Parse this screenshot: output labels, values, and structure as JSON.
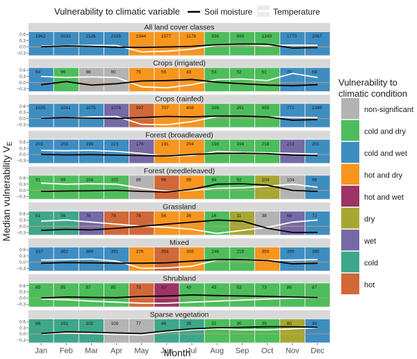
{
  "chart_data": {
    "type": "line",
    "title": "",
    "xlabel": "Month",
    "ylabel_main": "Median vulnerability V",
    "ylabel_sub": "E",
    "months": [
      "Jan",
      "Feb",
      "Mar",
      "Apr",
      "May",
      "Jun",
      "Jul",
      "Aug",
      "Sep",
      "Oct",
      "Nov",
      "Dec"
    ],
    "y_ticks": [
      "0.6",
      "0.3",
      "0.0",
      "−0.3"
    ],
    "ylim": [
      -0.45,
      0.75
    ],
    "top_legend": {
      "title": "Vulnerability to climatic variable",
      "items": [
        {
          "name": "Soil moisture",
          "color": "#000000"
        },
        {
          "name": "Temperature",
          "color": "#ffffff"
        }
      ]
    },
    "right_legend": {
      "title_line1": "Vulnerability to",
      "title_line2": "climatic condition",
      "items": [
        {
          "key": "ns",
          "label": "non-significant",
          "color": "#b3b3b3"
        },
        {
          "key": "cd",
          "label": "cold and dry",
          "color": "#4dbd5b"
        },
        {
          "key": "cw",
          "label": "cold and wet",
          "color": "#3e8dc1"
        },
        {
          "key": "hd",
          "label": "hot and dry",
          "color": "#f7951e"
        },
        {
          "key": "hw",
          "label": "hot and wet",
          "color": "#9c3465"
        },
        {
          "key": "dry",
          "label": "dry",
          "color": "#a6a732"
        },
        {
          "key": "wet",
          "label": "wet",
          "color": "#756aa6"
        },
        {
          "key": "cold",
          "label": "cold",
          "color": "#3ea68a"
        },
        {
          "key": "hot",
          "label": "hot",
          "color": "#d16838"
        }
      ]
    },
    "panels": [
      {
        "title": "All land cover classes",
        "classes": [
          "cw",
          "cw",
          "cw",
          "cw",
          "hd",
          "hd",
          "hd",
          "cd",
          "cd",
          "cd",
          "cw",
          "cw"
        ],
        "counts": [
          "1962",
          "2033",
          "2126",
          "2155",
          "1944",
          "1577",
          "1178",
          "936",
          "939",
          "1349",
          "1770",
          "2067"
        ],
        "soil_moisture": [
          0.0,
          0.04,
          0.02,
          -0.02,
          -0.03,
          -0.01,
          0.02,
          0.1,
          0.13,
          0.12,
          -0.06,
          -0.04
        ],
        "temperature": [
          0.03,
          0.05,
          0.07,
          0.06,
          -0.25,
          -0.22,
          -0.12,
          0.08,
          0.1,
          0.05,
          0.08,
          0.07
        ]
      },
      {
        "title": "Crops (irrigated)",
        "classes": [
          "cw",
          "cd",
          "ns",
          "ns",
          "hd",
          "hd",
          "hd",
          "cd",
          "cd",
          "cd",
          "cw",
          "cw"
        ],
        "counts": [
          "94",
          "96",
          "98",
          "90",
          "75",
          "56",
          "49",
          "54",
          "52",
          "61",
          "70",
          "68"
        ],
        "soil_moisture": [
          -0.1,
          0.05,
          -0.12,
          -0.05,
          0.08,
          0.1,
          0.15,
          0.02,
          -0.05,
          -0.12,
          -0.15,
          -0.1
        ],
        "temperature": [
          0.3,
          0.25,
          0.28,
          0.25,
          -0.2,
          -0.25,
          -0.1,
          0.15,
          0.18,
          0.1,
          0.45,
          0.25
        ]
      },
      {
        "title": "Crops (rainfed)",
        "classes": [
          "cw",
          "cw",
          "cw",
          "wet",
          "hot",
          "hd",
          "hd",
          "cd",
          "cd",
          "cd",
          "cw",
          "cw"
        ],
        "counts": [
          "1025",
          "1041",
          "1075",
          "1078",
          "997",
          "707",
          "409",
          "309",
          "291",
          "455",
          "771",
          "1040"
        ],
        "soil_moisture": [
          0.02,
          0.04,
          0.02,
          0.0,
          0.05,
          0.1,
          0.08,
          0.12,
          0.12,
          0.08,
          -0.08,
          -0.05
        ],
        "temperature": [
          0.05,
          0.03,
          0.08,
          0.1,
          -0.28,
          -0.3,
          -0.15,
          0.1,
          0.12,
          0.08,
          0.06,
          0.05
        ]
      },
      {
        "title": "Forest (broadleaved)",
        "classes": [
          "cw",
          "cw",
          "cw",
          "cw",
          "wet",
          "hd",
          "hd",
          "cd",
          "cd",
          "cd",
          "wet",
          "cw"
        ],
        "counts": [
          "203",
          "203",
          "199",
          "223",
          "176",
          "191",
          "204",
          "198",
          "194",
          "218",
          "213",
          "201"
        ],
        "soil_moisture": [
          0.0,
          -0.02,
          -0.01,
          -0.03,
          -0.05,
          -0.08,
          0.0,
          0.05,
          0.06,
          0.04,
          -0.03,
          -0.05
        ],
        "temperature": [
          0.2,
          0.18,
          0.2,
          0.15,
          0.05,
          -0.1,
          -0.05,
          0.15,
          0.1,
          0.08,
          0.05,
          0.02
        ]
      },
      {
        "title": "Forest (needleleaved)",
        "classes": [
          "cd",
          "cd",
          "cd",
          "cd",
          "ns",
          "hot",
          "hd",
          "cd",
          "cd",
          "dry",
          "ns",
          "cw"
        ],
        "counts": [
          "91",
          "99",
          "104",
          "102",
          "86",
          "98",
          "95",
          "94",
          "92",
          "104",
          "104",
          "96"
        ],
        "soil_moisture": [
          -0.05,
          -0.03,
          -0.02,
          0.0,
          -0.05,
          -0.08,
          0.05,
          0.3,
          0.32,
          0.25,
          0.0,
          -0.05
        ],
        "temperature": [
          0.35,
          0.3,
          0.32,
          0.3,
          0.1,
          -0.05,
          0.0,
          0.1,
          0.12,
          0.2,
          0.3,
          0.15
        ]
      },
      {
        "title": "Grassland",
        "classes": [
          "cold",
          "cold",
          "wet",
          "hot",
          "hot",
          "hd",
          "hd",
          "cd",
          "dry",
          "ns",
          "wet",
          "cw"
        ],
        "counts": [
          "51",
          "56",
          "76",
          "78",
          "76",
          "56",
          "36",
          "16",
          "11",
          "38",
          "68",
          "72"
        ],
        "soil_moisture": [
          -0.2,
          -0.15,
          -0.18,
          -0.1,
          0.0,
          0.1,
          0.2,
          0.3,
          0.25,
          -0.1,
          -0.3,
          -0.3
        ],
        "temperature": [
          0.25,
          0.3,
          0.2,
          0.1,
          0.0,
          -0.05,
          -0.15,
          -0.35,
          -0.2,
          -0.05,
          0.2,
          0.3
        ]
      },
      {
        "title": "Mixed",
        "classes": [
          "cw",
          "cw",
          "cw",
          "cw",
          "hd",
          "hot",
          "hd",
          "cd",
          "cd",
          "hd",
          "cw",
          "cw"
        ],
        "counts": [
          "337",
          "362",
          "389",
          "391",
          "376",
          "354",
          "305",
          "248",
          "215",
          "350",
          "395",
          "380"
        ],
        "soil_moisture": [
          -0.05,
          -0.02,
          -0.03,
          -0.05,
          -0.05,
          -0.03,
          0.05,
          0.12,
          0.13,
          0.08,
          -0.08,
          -0.05
        ],
        "temperature": [
          0.1,
          0.12,
          0.15,
          0.05,
          -0.3,
          -0.28,
          -0.2,
          0.1,
          0.15,
          0.1,
          0.1,
          0.12
        ]
      },
      {
        "title": "Shrubland",
        "classes": [
          "cd",
          "cd",
          "cd",
          "cd",
          "hot",
          "hw",
          "cd",
          "cd",
          "cd",
          "cd",
          "cd",
          "cd"
        ],
        "counts": [
          "85",
          "85",
          "87",
          "85",
          "79",
          "69",
          "49",
          "45",
          "53",
          "73",
          "86",
          "87"
        ],
        "soil_moisture": [
          0.0,
          0.05,
          0.03,
          0.02,
          0.08,
          0.1,
          0.15,
          0.12,
          0.1,
          0.08,
          0.05,
          0.02
        ],
        "temperature": [
          -0.05,
          -0.08,
          -0.15,
          -0.2,
          -0.25,
          -0.25,
          -0.2,
          -0.15,
          -0.1,
          -0.05,
          0.0,
          0.0
        ]
      },
      {
        "title": "Sparse vegetation",
        "classes": [
          "cold",
          "cold",
          "cold",
          "ns",
          "ns",
          "cold",
          "cold",
          "cd",
          "cd",
          "cd",
          "dry",
          "cw"
        ],
        "counts": [
          "96",
          "101",
          "102",
          "108",
          "77",
          "46",
          "35",
          "32",
          "30",
          "39",
          "80",
          "99"
        ],
        "soil_moisture": [
          0.02,
          0.1,
          0.08,
          0.05,
          0.02,
          0.15,
          0.25,
          0.3,
          0.32,
          0.35,
          0.35,
          0.32
        ],
        "temperature": [
          0.0,
          0.05,
          0.02,
          -0.02,
          -0.05,
          0.1,
          0.2,
          0.25,
          0.2,
          0.2,
          0.25,
          0.3
        ]
      }
    ]
  }
}
